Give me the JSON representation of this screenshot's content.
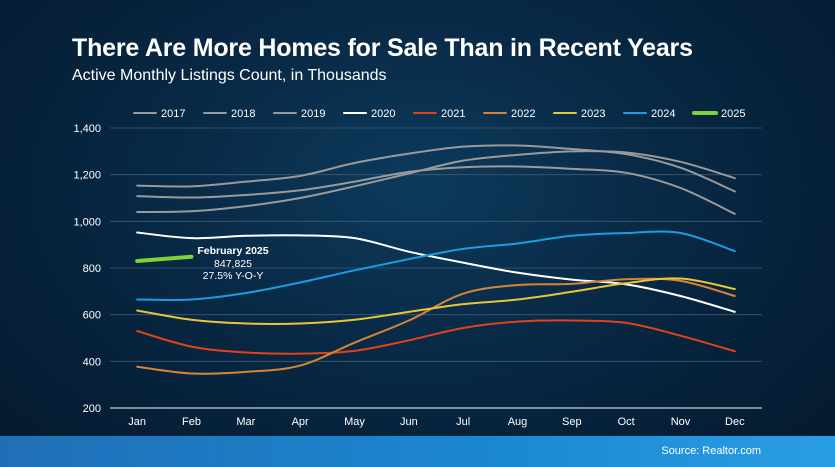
{
  "title": "There Are More Homes for Sale Than in Recent Years",
  "subtitle": "Active Monthly Listings Count, in Thousands",
  "source": "Source: Realtor.com",
  "chart_data": {
    "type": "line",
    "categories": [
      "Jan",
      "Feb",
      "Mar",
      "Apr",
      "May",
      "Jun",
      "Jul",
      "Aug",
      "Sep",
      "Oct",
      "Nov",
      "Dec"
    ],
    "ylim": [
      200,
      1400
    ],
    "yticks": [
      200,
      400,
      600,
      800,
      "1,000",
      "1,200",
      "1,400"
    ],
    "ytick_values": [
      200,
      400,
      600,
      800,
      1000,
      1200,
      1400
    ],
    "grid": true,
    "legend_position": "top",
    "series": [
      {
        "name": "2017",
        "color": "#9a9a9a",
        "values": [
          1040,
          1043,
          1065,
          1100,
          1150,
          1205,
          1260,
          1285,
          1300,
          1295,
          1255,
          1185
        ]
      },
      {
        "name": "2018",
        "color": "#9a9a9a",
        "values": [
          1108,
          1102,
          1113,
          1133,
          1170,
          1212,
          1232,
          1235,
          1225,
          1208,
          1143,
          1032
        ]
      },
      {
        "name": "2019",
        "color": "#9a9a9a",
        "values": [
          1153,
          1150,
          1170,
          1195,
          1250,
          1290,
          1320,
          1325,
          1310,
          1288,
          1230,
          1128
        ]
      },
      {
        "name": "2020",
        "color": "#ffffff",
        "values": [
          952,
          928,
          938,
          940,
          928,
          870,
          823,
          780,
          750,
          730,
          680,
          612
        ]
      },
      {
        "name": "2021",
        "color": "#e0421a",
        "values": [
          530,
          463,
          438,
          433,
          445,
          490,
          543,
          570,
          575,
          565,
          510,
          443
        ]
      },
      {
        "name": "2022",
        "color": "#d68537",
        "values": [
          377,
          348,
          355,
          382,
          480,
          575,
          690,
          727,
          732,
          752,
          745,
          680
        ]
      },
      {
        "name": "2023",
        "color": "#e9c638",
        "values": [
          618,
          578,
          562,
          562,
          578,
          612,
          645,
          665,
          698,
          735,
          755,
          710
        ]
      },
      {
        "name": "2024",
        "color": "#1b9de2",
        "values": [
          665,
          665,
          693,
          738,
          790,
          838,
          882,
          905,
          938,
          950,
          950,
          872
        ]
      },
      {
        "name": "2025",
        "color": "#7ed23a",
        "values": [
          830,
          848,
          null,
          null,
          null,
          null,
          null,
          null,
          null,
          null,
          null,
          null
        ]
      }
    ],
    "annotation": {
      "label": "February 2025",
      "value": "847,825",
      "change": "27.5% Y-O-Y"
    }
  }
}
